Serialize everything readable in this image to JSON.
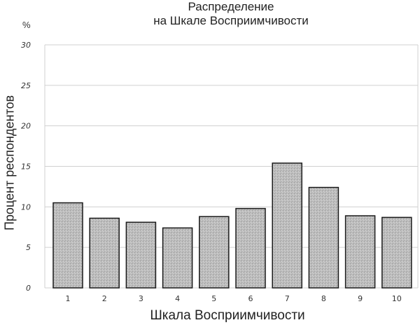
{
  "header": {
    "title_line1": "Распределение",
    "title_line2": "на Шкале Восприимчивости",
    "unit": "%"
  },
  "axes": {
    "ylabel": "Процент респондентов",
    "xlabel": "Шкала Восприимчивости"
  },
  "colors": {
    "bar_fill": "#b8b8b8",
    "bar_stroke": "#1a1a1a",
    "grid": "#d0d0d0"
  },
  "chart_data": {
    "type": "bar",
    "title": "Распределение на Шкале Восприимчивости",
    "xlabel": "Шкала Восприимчивости",
    "ylabel": "Процент респондентов",
    "y_unit": "%",
    "categories": [
      "1",
      "2",
      "3",
      "4",
      "5",
      "6",
      "7",
      "8",
      "9",
      "10"
    ],
    "values": [
      10.5,
      8.6,
      8.1,
      7.4,
      8.8,
      9.8,
      15.4,
      12.4,
      8.9,
      8.7
    ],
    "ylim": [
      0,
      30
    ],
    "yticks": [
      0,
      5,
      10,
      15,
      20,
      25,
      30
    ],
    "grid": true,
    "legend": null
  }
}
